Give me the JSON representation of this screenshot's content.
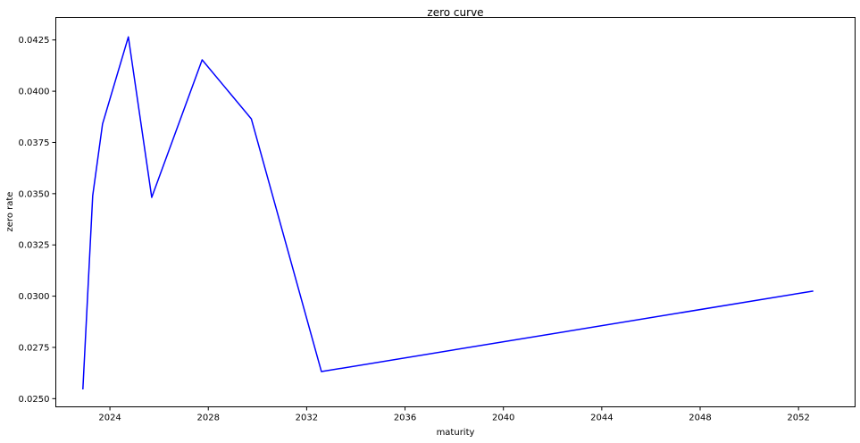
{
  "chart_data": {
    "type": "line",
    "title": "zero curve",
    "xlabel": "maturity",
    "ylabel": "zero rate",
    "xlim": [
      2021.8,
      2054.3
    ],
    "ylim": [
      0.0246,
      0.0436
    ],
    "x_ticks": [
      2024,
      2028,
      2032,
      2036,
      2040,
      2044,
      2048,
      2052
    ],
    "y_ticks": [
      0.025,
      0.0275,
      0.03,
      0.0325,
      0.035,
      0.0375,
      0.04,
      0.0425
    ],
    "y_tick_labels": [
      "0.0250",
      "0.0275",
      "0.0300",
      "0.0325",
      "0.0350",
      "0.0375",
      "0.0400",
      "0.0425"
    ],
    "grid": false,
    "series": [
      {
        "name": "zero curve",
        "color": "#0000ff",
        "x": [
          2022.9,
          2023.3,
          2023.7,
          2024.75,
          2025.7,
          2027.75,
          2029.75,
          2032.6,
          2052.6
        ],
        "y": [
          0.02545,
          0.0349,
          0.0384,
          0.04265,
          0.03482,
          0.04153,
          0.03865,
          0.02632,
          0.03025
        ]
      }
    ]
  }
}
